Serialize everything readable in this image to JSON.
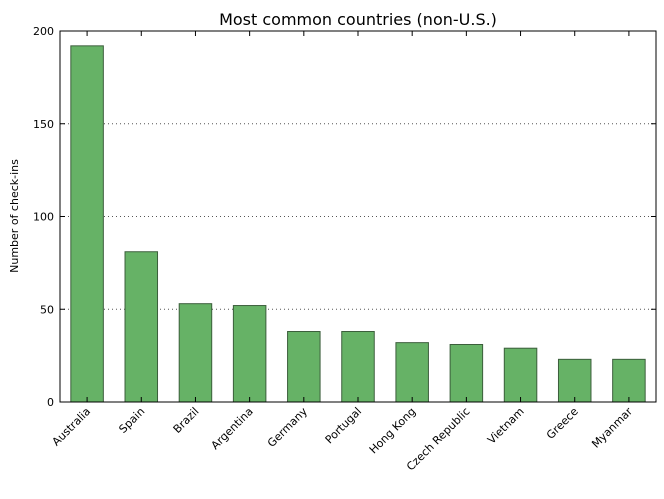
{
  "chart_data": {
    "type": "bar",
    "title": "Most common countries (non-U.S.)",
    "xlabel": "",
    "ylabel": "Number of check-ins",
    "categories": [
      "Australia",
      "Spain",
      "Brazil",
      "Argentina",
      "Germany",
      "Portugal",
      "Hong Kong",
      "Czech Republic",
      "Vietnam",
      "Greece",
      "Myanmar"
    ],
    "values": [
      192,
      81,
      53,
      52,
      38,
      38,
      32,
      31,
      29,
      23,
      23
    ],
    "ylim": [
      0,
      200
    ],
    "yticks": [
      0,
      50,
      100,
      150,
      200
    ],
    "grid": "horizontal dotted",
    "bar_color": "#66b266",
    "bar_edge_color": "#3b5e3b"
  }
}
